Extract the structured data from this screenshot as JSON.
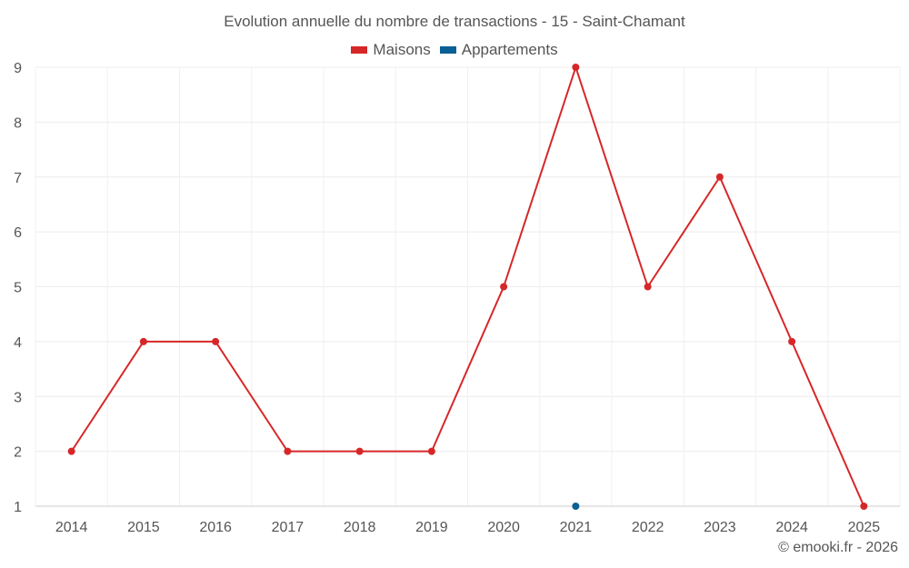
{
  "chart_data": {
    "type": "line",
    "title": "Evolution annuelle du nombre de transactions - 15 - Saint-Chamant",
    "categories": [
      "2014",
      "2015",
      "2016",
      "2017",
      "2018",
      "2019",
      "2020",
      "2021",
      "2022",
      "2023",
      "2024",
      "2025"
    ],
    "series": [
      {
        "name": "Maisons",
        "color": "#d62728",
        "values": [
          2,
          4,
          4,
          2,
          2,
          2,
          5,
          9,
          5,
          7,
          4,
          1
        ]
      },
      {
        "name": "Appartements",
        "color": "#0a5f95",
        "values": [
          null,
          null,
          null,
          null,
          null,
          null,
          null,
          1,
          null,
          null,
          null,
          null
        ]
      }
    ],
    "yticks": [
      1,
      2,
      3,
      4,
      5,
      6,
      7,
      8,
      9
    ],
    "ylim": [
      1,
      9
    ],
    "grid": true,
    "legend": "top-center"
  },
  "footer": {
    "copyright": "© emooki.fr - 2026"
  }
}
